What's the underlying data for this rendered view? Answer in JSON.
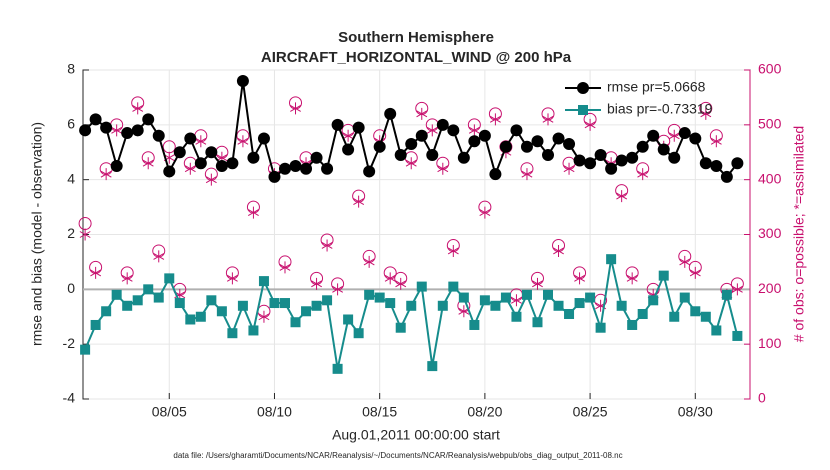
{
  "chart_data": {
    "type": "line",
    "title": [
      "Southern Hemisphere",
      "AIRCRAFT_HORIZONTAL_WIND @ 200 hPa"
    ],
    "xlabel": "Aug.01,2011 00:00:00 start",
    "ylabel": "rmse and bias (model - observation)",
    "y2label": "# of obs: o=possible; *=assimilated",
    "footnote": "data file: /Users/gharamti/Documents/NCAR/Reanalysis/~/Documents/NCAR/Reanalysis/webpub/obs_diag_output_2011-08.nc",
    "x": [
      1,
      1.5,
      2,
      2.5,
      3,
      3.5,
      4,
      4.5,
      5,
      5.5,
      6,
      6.5,
      7,
      7.5,
      8,
      8.5,
      9,
      9.5,
      10,
      10.5,
      11,
      11.5,
      12,
      12.5,
      13,
      13.5,
      14,
      14.5,
      15,
      15.5,
      16,
      16.5,
      17,
      17.5,
      18,
      18.5,
      19,
      19.5,
      20,
      20.5,
      21,
      21.5,
      22,
      22.5,
      23,
      23.5,
      24,
      24.5,
      25,
      25.5,
      26,
      26.5,
      27,
      27.5,
      28,
      28.5,
      29,
      29.5,
      30,
      30.5,
      31,
      31.5,
      32
    ],
    "xlim": [
      0.9,
      32.6
    ],
    "xticks": [
      {
        "value": 5,
        "label": "08/05"
      },
      {
        "value": 10,
        "label": "08/10"
      },
      {
        "value": 15,
        "label": "08/15"
      },
      {
        "value": 20,
        "label": "08/20"
      },
      {
        "value": 25,
        "label": "08/25"
      },
      {
        "value": 30,
        "label": "08/30"
      }
    ],
    "ylim": [
      -4,
      8
    ],
    "yticks": [
      -4,
      -2,
      0,
      2,
      4,
      6,
      8
    ],
    "y2lim": [
      0,
      600
    ],
    "y2ticks": [
      0,
      100,
      200,
      300,
      400,
      500,
      600
    ],
    "hline": 0,
    "grid": true,
    "legend": "upper right",
    "series": [
      {
        "name": "rmse pr=5.0668",
        "color": "#000000",
        "marker": "circle",
        "values": [
          5.8,
          6.2,
          5.9,
          4.5,
          5.7,
          5.8,
          6.2,
          5.6,
          4.3,
          5.0,
          5.5,
          4.6,
          5.0,
          4.5,
          4.6,
          7.6,
          4.8,
          5.5,
          4.1,
          4.4,
          4.5,
          4.4,
          4.8,
          4.4,
          6.0,
          5.1,
          5.9,
          4.3,
          5.2,
          6.4,
          4.9,
          5.3,
          5.6,
          4.9,
          6.0,
          5.8,
          4.8,
          5.4,
          5.6,
          4.2,
          5.2,
          5.8,
          5.2,
          5.4,
          4.9,
          5.5,
          5.3,
          4.7,
          4.6,
          4.9,
          4.4,
          4.7,
          4.8,
          5.2,
          5.6,
          5.1,
          4.8,
          5.7,
          5.5,
          4.6,
          4.5,
          4.1,
          4.6
        ]
      },
      {
        "name": "bias pr=-0.73319",
        "color": "#168c8c",
        "marker": "square",
        "values": [
          -2.2,
          -1.3,
          -0.8,
          -0.2,
          -0.6,
          -0.4,
          0.0,
          -0.3,
          0.4,
          -0.5,
          -1.1,
          -1.0,
          -0.4,
          -0.8,
          -1.6,
          -0.6,
          -1.5,
          0.3,
          -0.5,
          -0.5,
          -1.2,
          -0.8,
          -0.6,
          -0.4,
          -2.9,
          -1.1,
          -1.6,
          -0.2,
          -0.3,
          -0.5,
          -1.4,
          -0.6,
          0.1,
          -2.8,
          -0.6,
          0.1,
          -0.3,
          -1.3,
          -0.4,
          -0.6,
          -0.3,
          -1.0,
          -0.2,
          -1.2,
          -0.2,
          -0.6,
          -0.9,
          -0.5,
          -0.3,
          -1.4,
          1.1,
          -0.6,
          -1.3,
          -0.9,
          -0.4,
          0.5,
          -1.0,
          -0.3,
          -0.8,
          -1.0,
          -1.5,
          -0.2,
          -1.7
        ]
      },
      {
        "axis": "y2",
        "color": "#c8106e",
        "marker": "open-circle",
        "values": [
          320,
          240,
          420,
          500,
          230,
          540,
          440,
          270,
          460,
          200,
          430,
          480,
          410,
          450,
          230,
          480,
          350,
          160,
          420,
          250,
          540,
          440,
          220,
          290,
          210,
          490,
          370,
          260,
          480,
          230,
          220,
          440,
          530,
          500,
          430,
          280,
          170,
          500,
          350,
          520,
          460,
          190,
          420,
          220,
          520,
          280,
          430,
          230,
          510,
          180,
          440,
          380,
          230,
          420,
          200,
          470,
          490,
          260,
          240,
          530,
          480,
          200,
          210
        ]
      },
      {
        "axis": "y2",
        "color": "#c8106e",
        "marker": "asterisk",
        "values": [
          300,
          230,
          410,
          490,
          220,
          530,
          430,
          260,
          440,
          190,
          420,
          470,
          400,
          440,
          220,
          470,
          340,
          150,
          410,
          240,
          530,
          430,
          210,
          280,
          200,
          480,
          360,
          250,
          470,
          220,
          210,
          430,
          520,
          490,
          420,
          270,
          160,
          490,
          340,
          510,
          450,
          180,
          410,
          210,
          510,
          270,
          420,
          220,
          500,
          170,
          430,
          370,
          220,
          410,
          190,
          460,
          480,
          250,
          230,
          520,
          470,
          190,
          200
        ]
      }
    ]
  }
}
